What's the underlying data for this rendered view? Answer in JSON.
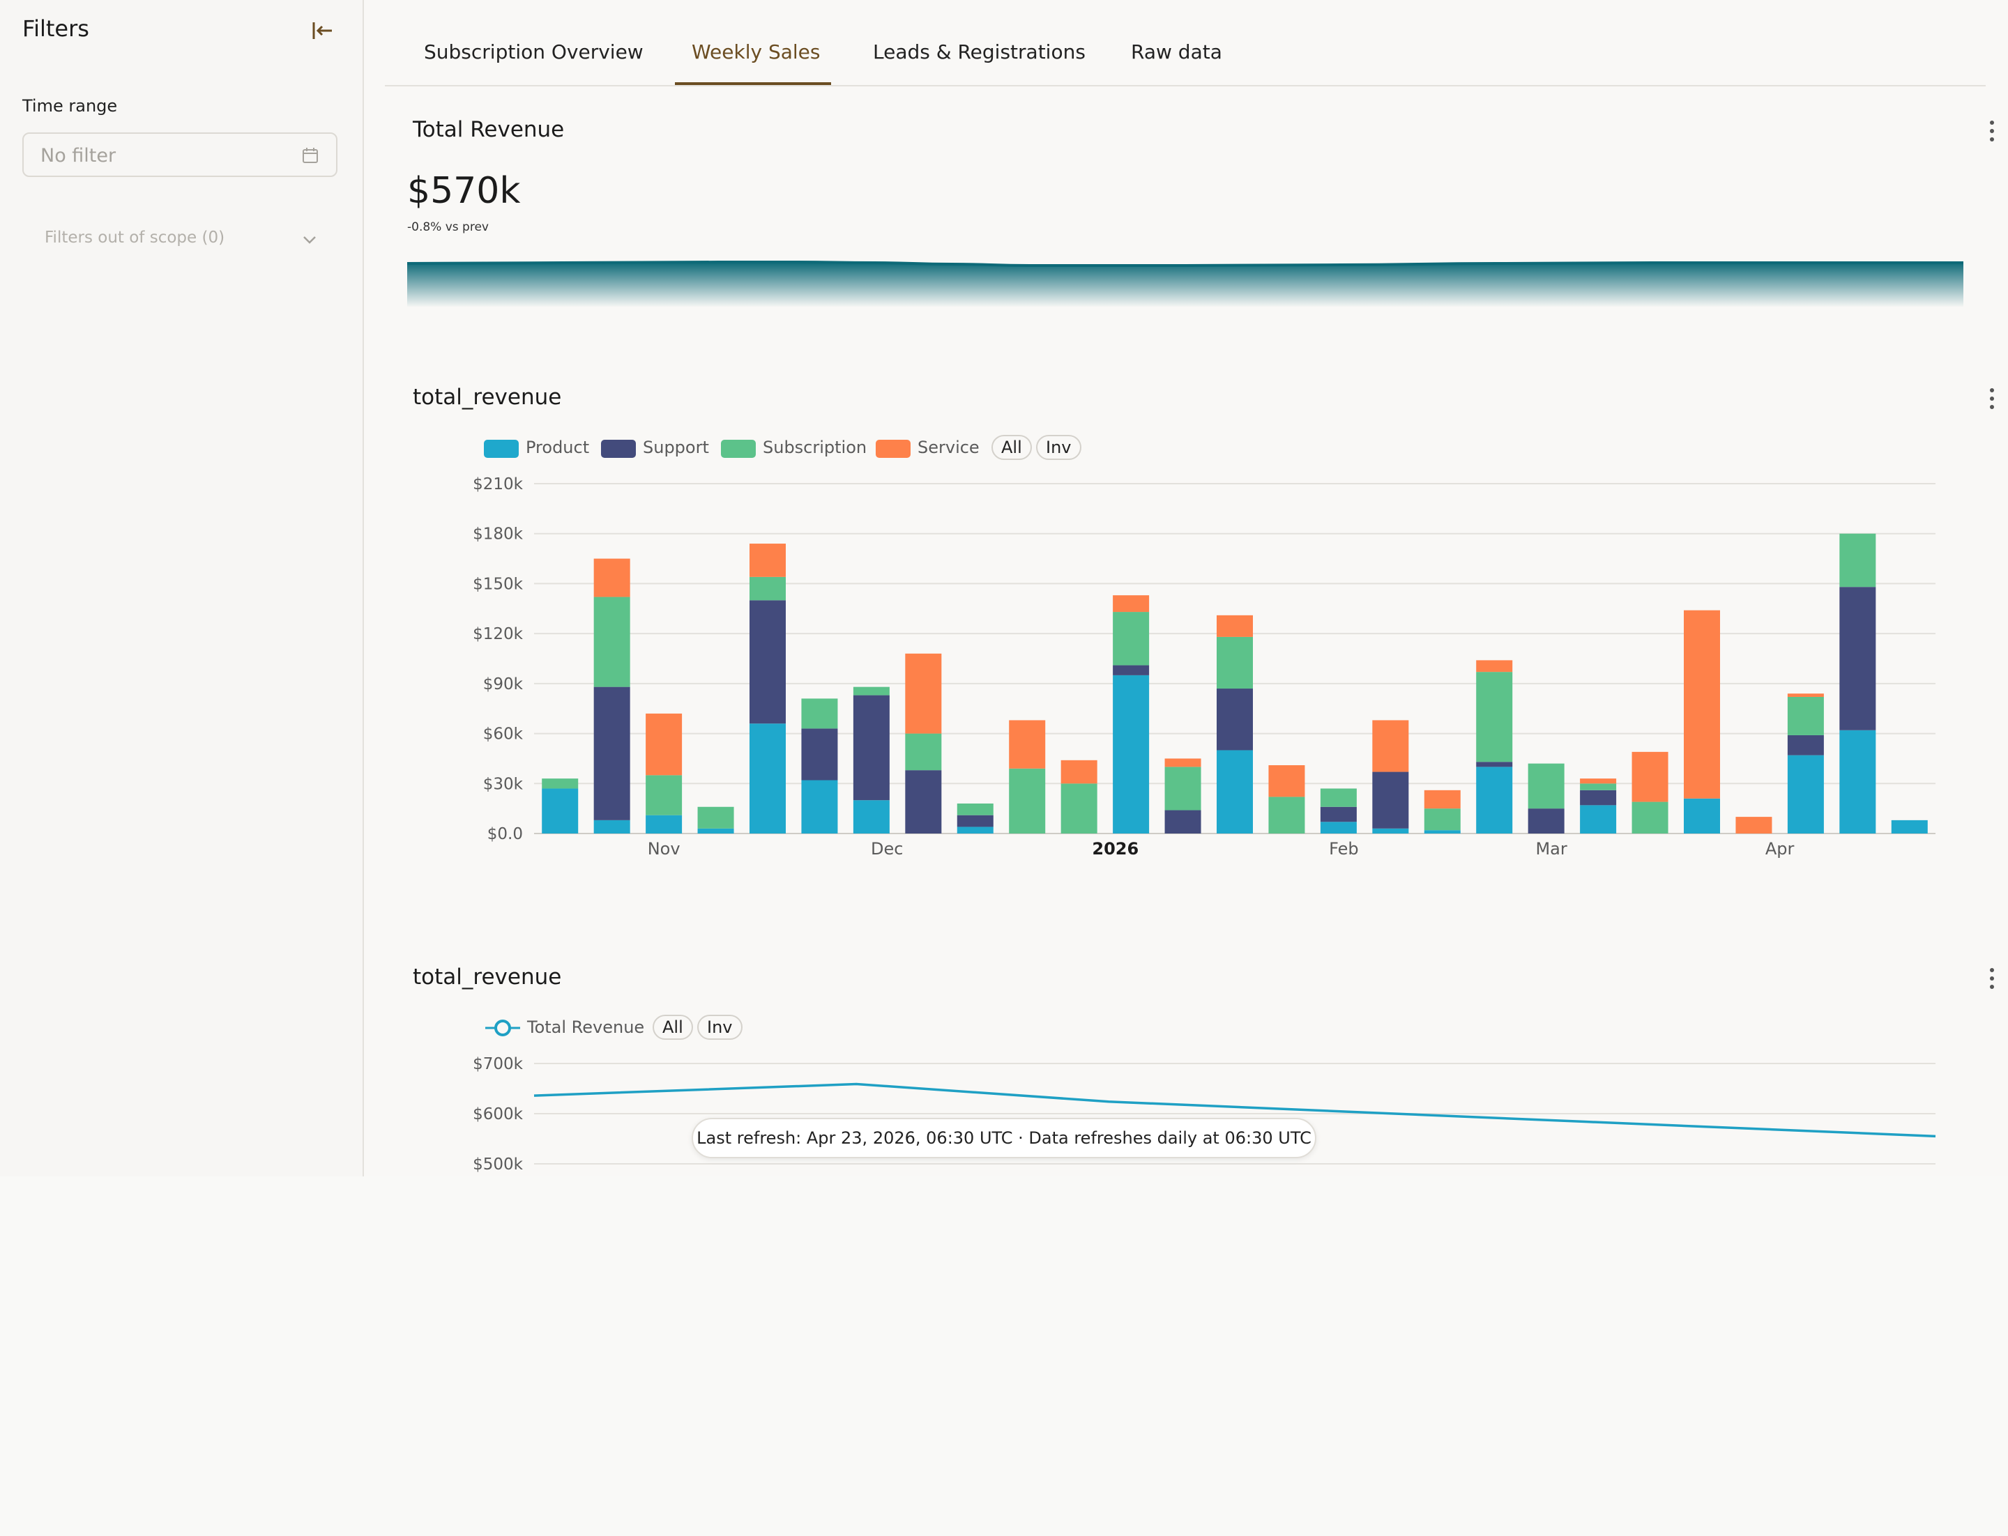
{
  "sidebar": {
    "title": "Filters",
    "time_range_label": "Time range",
    "time_range_placeholder": "No filter",
    "filters_out_of_scope": "Filters out of scope (0)"
  },
  "tabs": [
    {
      "label": "Subscription Overview",
      "active": false
    },
    {
      "label": "Weekly Sales",
      "active": true
    },
    {
      "label": "Leads & Registrations",
      "active": false
    },
    {
      "label": "Raw data",
      "active": false
    }
  ],
  "kpi": {
    "title": "Total Revenue",
    "value": "$570k",
    "delta": "-0.8% vs prev"
  },
  "colors": {
    "product": "#1fa8cc",
    "support": "#434b7c",
    "subscription": "#5cc28a",
    "service": "#fe814a",
    "line": "#1fa0c4",
    "accent": "#6b4d22",
    "sparkline": "#0e6a78"
  },
  "bar_chart": {
    "title": "total_revenue",
    "pills": [
      "All",
      "Inv"
    ],
    "chart_data": {
      "type": "bar",
      "stacked": true,
      "legend_position": "top-left",
      "grid": true,
      "ylim": [
        0,
        210000
      ],
      "yticks": [
        "$0.0",
        "$30k",
        "$60k",
        "$90k",
        "$120k",
        "$150k",
        "$180k",
        "$210k"
      ],
      "xtick_labels": [
        {
          "label": "Nov",
          "at_index": 2,
          "bold": false
        },
        {
          "label": "Dec",
          "at_index": 6.3,
          "bold": false
        },
        {
          "label": "2026",
          "at_index": 10.7,
          "bold": true
        },
        {
          "label": "Feb",
          "at_index": 15.1,
          "bold": false
        },
        {
          "label": "Mar",
          "at_index": 19.1,
          "bold": false
        },
        {
          "label": "Apr",
          "at_index": 23.5,
          "bold": false
        }
      ],
      "series": [
        {
          "name": "Product",
          "values": [
            27000,
            8000,
            11000,
            3000,
            66000,
            32000,
            20000,
            0,
            4000,
            0,
            0,
            95000,
            0,
            50000,
            0,
            7000,
            3000,
            2000,
            40000,
            0,
            17000,
            0,
            21000,
            0,
            47000,
            62000,
            8000
          ]
        },
        {
          "name": "Support",
          "values": [
            0,
            80000,
            0,
            0,
            74000,
            31000,
            63000,
            38000,
            7000,
            0,
            0,
            6000,
            14000,
            37000,
            0,
            9000,
            34000,
            0,
            3000,
            15000,
            9000,
            0,
            0,
            0,
            12000,
            86000,
            0
          ]
        },
        {
          "name": "Subscription",
          "values": [
            6000,
            54000,
            24000,
            13000,
            14000,
            18000,
            5000,
            22000,
            7000,
            39000,
            30000,
            32000,
            26000,
            31000,
            22000,
            11000,
            0,
            13000,
            54000,
            27000,
            4000,
            19000,
            0,
            0,
            23000,
            32000,
            0
          ]
        },
        {
          "name": "Service",
          "values": [
            0,
            23000,
            37000,
            0,
            20000,
            0,
            0,
            48000,
            0,
            29000,
            14000,
            10000,
            5000,
            13000,
            19000,
            0,
            31000,
            11000,
            7000,
            0,
            3000,
            30000,
            113000,
            10000,
            2000,
            0,
            0
          ]
        }
      ]
    }
  },
  "line_chart": {
    "title": "total_revenue",
    "pills": [
      "All",
      "Inv"
    ],
    "chart_data": {
      "type": "line",
      "grid": true,
      "legend_position": "top-left",
      "yticks_visible": [
        "$700k",
        "$600k",
        "$500k"
      ],
      "series": [
        {
          "name": "Total Revenue",
          "x": [
            0,
            0.23,
            0.41,
            0.58,
            0.75,
            1.0
          ],
          "y": [
            636000,
            659000,
            624000,
            604000,
            584000,
            555000
          ]
        }
      ]
    }
  },
  "sparkline": {
    "x": [
      0,
      0.1,
      0.2,
      0.25,
      0.3,
      0.35,
      0.4,
      0.5,
      0.6,
      0.7,
      0.8,
      0.9,
      1.0
    ],
    "y": [
      8,
      7,
      6,
      6,
      7,
      9,
      11,
      11,
      10,
      8,
      7,
      7,
      7
    ]
  },
  "tooltip": "Last refresh: Apr 23, 2026, 06:30 UTC · Data refreshes daily at 06:30 UTC"
}
